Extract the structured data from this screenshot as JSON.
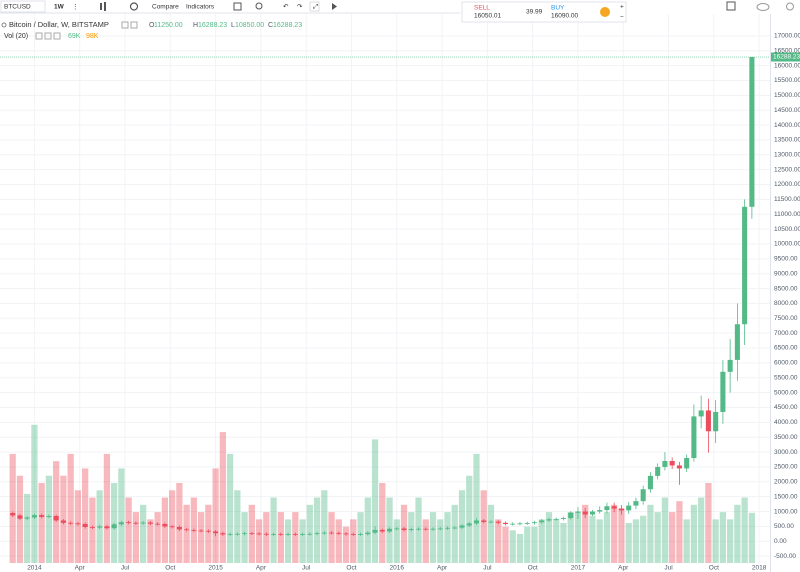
{
  "toolbar": {
    "symbol": "BTCUSD",
    "interval": "1W",
    "compare": "Compare",
    "indicators": "Indicators"
  },
  "trade": {
    "sell_label": "SELL",
    "sell_price": "16050.01",
    "spread": "39.99",
    "buy_label": "BUY",
    "buy_price": "16090.00"
  },
  "chart_data": {
    "type": "candlestick",
    "title": "Bitcoin / Dollar, W, BITSTAMP",
    "legend": {
      "open_label": "O",
      "open": "11250.00",
      "high_label": "H",
      "high": "16288.23",
      "low_label": "L",
      "low": "10850.00",
      "close_label": "C",
      "close": "16288.23"
    },
    "volume_title": "Vol (20)",
    "volume_label": "69K",
    "volume_ma_label": "98K",
    "up_color": "#53b987",
    "down_color": "#eb4d5c",
    "grid": true,
    "x": [
      2013.88,
      2013.92,
      2013.96,
      2014.0,
      2014.04,
      2014.08,
      2014.12,
      2014.16,
      2014.2,
      2014.24,
      2014.28,
      2014.32,
      2014.36,
      2014.4,
      2014.44,
      2014.48,
      2014.52,
      2014.56,
      2014.6,
      2014.64,
      2014.68,
      2014.72,
      2014.76,
      2014.8,
      2014.84,
      2014.88,
      2014.92,
      2014.96,
      2015.0,
      2015.04,
      2015.08,
      2015.12,
      2015.16,
      2015.2,
      2015.24,
      2015.28,
      2015.32,
      2015.36,
      2015.4,
      2015.44,
      2015.48,
      2015.52,
      2015.56,
      2015.6,
      2015.64,
      2015.68,
      2015.72,
      2015.76,
      2015.8,
      2015.84,
      2015.88,
      2015.92,
      2015.96,
      2016.0,
      2016.04,
      2016.08,
      2016.12,
      2016.16,
      2016.2,
      2016.24,
      2016.28,
      2016.32,
      2016.36,
      2016.4,
      2016.44,
      2016.48,
      2016.52,
      2016.56,
      2016.6,
      2016.64,
      2016.68,
      2016.72,
      2016.76,
      2016.8,
      2016.84,
      2016.88,
      2016.92,
      2016.96,
      2017.0,
      2017.04,
      2017.08,
      2017.12,
      2017.16,
      2017.2,
      2017.24,
      2017.28,
      2017.32,
      2017.36,
      2017.4,
      2017.44,
      2017.48,
      2017.52,
      2017.56,
      2017.6,
      2017.64,
      2017.68,
      2017.72,
      2017.76,
      2017.8,
      2017.84,
      2017.88,
      2017.92,
      2017.96
    ],
    "open": [
      950,
      870,
      760,
      800,
      880,
      820,
      850,
      700,
      620,
      600,
      580,
      480,
      460,
      500,
      440,
      570,
      640,
      620,
      600,
      630,
      590,
      580,
      500,
      480,
      400,
      380,
      360,
      350,
      330,
      270,
      230,
      240,
      250,
      270,
      260,
      250,
      230,
      240,
      230,
      240,
      230,
      240,
      250,
      270,
      290,
      280,
      260,
      240,
      230,
      240,
      290,
      380,
      330,
      420,
      430,
      380,
      410,
      420,
      410,
      420,
      430,
      450,
      460,
      530,
      600,
      700,
      650,
      660,
      620,
      580,
      590,
      600,
      610,
      640,
      700,
      740,
      750,
      780,
      960,
      1000,
      900,
      1000,
      1050,
      1180,
      1100,
      1040,
      1200,
      1350,
      1750,
      2200,
      2500,
      2700,
      2550,
      2450,
      2800,
      4200,
      4400,
      3700,
      4350,
      5700,
      6100,
      7300,
      11250
    ],
    "high": [
      1000,
      920,
      850,
      930,
      930,
      900,
      900,
      750,
      670,
      650,
      630,
      530,
      550,
      550,
      620,
      690,
      690,
      670,
      680,
      680,
      640,
      630,
      550,
      530,
      450,
      430,
      410,
      400,
      380,
      320,
      290,
      300,
      320,
      320,
      310,
      300,
      290,
      290,
      290,
      290,
      290,
      300,
      320,
      340,
      340,
      330,
      310,
      290,
      290,
      340,
      500,
      430,
      470,
      480,
      480,
      460,
      470,
      470,
      470,
      480,
      500,
      510,
      580,
      650,
      780,
      750,
      710,
      710,
      670,
      640,
      650,
      660,
      690,
      750,
      790,
      800,
      830,
      1010,
      1150,
      1120,
      1050,
      1170,
      1300,
      1300,
      1220,
      1320,
      1470,
      1870,
      2320,
      2620,
      3000,
      2820,
      2670,
      2920,
      4600,
      4900,
      4800,
      4750,
      6100,
      6800,
      8000,
      11500,
      16288.23
    ],
    "low": [
      820,
      710,
      710,
      750,
      770,
      770,
      650,
      570,
      550,
      530,
      430,
      410,
      410,
      390,
      390,
      520,
      570,
      550,
      550,
      540,
      530,
      450,
      430,
      350,
      330,
      310,
      300,
      280,
      170,
      180,
      180,
      190,
      200,
      210,
      200,
      180,
      180,
      180,
      180,
      180,
      180,
      190,
      200,
      220,
      230,
      210,
      190,
      180,
      180,
      190,
      240,
      280,
      280,
      370,
      330,
      330,
      360,
      360,
      360,
      370,
      380,
      400,
      410,
      480,
      550,
      600,
      600,
      570,
      530,
      530,
      540,
      550,
      560,
      590,
      650,
      690,
      700,
      730,
      750,
      780,
      850,
      930,
      930,
      980,
      900,
      920,
      1080,
      1230,
      1630,
      2080,
      2380,
      2430,
      1900,
      2330,
      2680,
      3800,
      2980,
      3300,
      3950,
      5000,
      5400,
      6600,
      10850
    ],
    "close": [
      870,
      760,
      800,
      880,
      820,
      850,
      700,
      620,
      600,
      580,
      480,
      460,
      500,
      440,
      570,
      640,
      620,
      600,
      630,
      590,
      580,
      500,
      480,
      400,
      380,
      360,
      350,
      330,
      270,
      230,
      240,
      250,
      270,
      260,
      250,
      230,
      240,
      230,
      240,
      230,
      240,
      250,
      270,
      290,
      280,
      260,
      240,
      230,
      240,
      290,
      380,
      330,
      420,
      430,
      380,
      410,
      420,
      410,
      420,
      430,
      450,
      460,
      530,
      600,
      700,
      650,
      660,
      620,
      580,
      590,
      600,
      610,
      640,
      700,
      740,
      750,
      780,
      960,
      1000,
      900,
      1000,
      1050,
      1180,
      1100,
      1040,
      1200,
      1350,
      1750,
      2200,
      2500,
      2700,
      2550,
      2450,
      2800,
      4200,
      4400,
      3700,
      4350,
      5700,
      6100,
      7300,
      11250,
      16288.23
    ],
    "volume": [
      150,
      120,
      95,
      190,
      110,
      120,
      140,
      120,
      150,
      100,
      130,
      90,
      100,
      150,
      110,
      130,
      90,
      70,
      80,
      60,
      70,
      90,
      100,
      110,
      80,
      90,
      70,
      80,
      130,
      180,
      150,
      100,
      70,
      80,
      60,
      70,
      90,
      70,
      60,
      70,
      60,
      80,
      90,
      100,
      70,
      60,
      50,
      60,
      70,
      90,
      170,
      110,
      90,
      60,
      80,
      70,
      90,
      60,
      70,
      60,
      70,
      80,
      100,
      120,
      150,
      100,
      80,
      60,
      50,
      45,
      40,
      50,
      50,
      60,
      70,
      60,
      55,
      70,
      70,
      80,
      65,
      60,
      70,
      80,
      75,
      55,
      60,
      65,
      80,
      70,
      90,
      70,
      85,
      60,
      80,
      90,
      110,
      60,
      70,
      60,
      80,
      90,
      69
    ],
    "volume_lim": [
      0,
      220
    ],
    "xlim": [
      2013.81,
      2018.06
    ],
    "xticks": [
      2014,
      {
        "value": 2014.25,
        "label": "Apr"
      },
      {
        "value": 2014.5,
        "label": "Jul"
      },
      {
        "value": 2014.75,
        "label": "Oct"
      },
      2015,
      {
        "value": 2015.25,
        "label": "Apr"
      },
      {
        "value": 2015.5,
        "label": "Jul"
      },
      {
        "value": 2015.75,
        "label": "Oct"
      },
      2016,
      {
        "value": 2016.25,
        "label": "Apr"
      },
      {
        "value": 2016.5,
        "label": "Jul"
      },
      {
        "value": 2016.75,
        "label": "Oct"
      },
      2017,
      {
        "value": 2017.25,
        "label": "Apr"
      },
      {
        "value": 2017.5,
        "label": "Jul"
      },
      {
        "value": 2017.75,
        "label": "Oct"
      },
      2018
    ],
    "ylim": [
      -1000,
      17500
    ],
    "yticks": [
      {
        "value": -500,
        "label": "-500.00"
      },
      {
        "value": 0,
        "label": "0.00"
      },
      {
        "value": 500,
        "label": "500.00"
      },
      {
        "value": 1000,
        "label": "1000.00"
      },
      {
        "value": 1500,
        "label": "1500.00"
      },
      {
        "value": 2000,
        "label": "2000.00"
      },
      {
        "value": 2500,
        "label": "2500.00"
      },
      {
        "value": 3000,
        "label": "3000.00"
      },
      {
        "value": 3500,
        "label": "3500.00"
      },
      {
        "value": 4000,
        "label": "4000.00"
      },
      {
        "value": 4500,
        "label": "4500.00"
      },
      {
        "value": 5000,
        "label": "5000.00"
      },
      {
        "value": 5500,
        "label": "5500.00"
      },
      {
        "value": 6000,
        "label": "6000.00"
      },
      {
        "value": 6500,
        "label": "6500.00"
      },
      {
        "value": 7000,
        "label": "7000.00"
      },
      {
        "value": 7500,
        "label": "7500.00"
      },
      {
        "value": 8000,
        "label": "8000.00"
      },
      {
        "value": 8500,
        "label": "8500.00"
      },
      {
        "value": 9000,
        "label": "9000.00"
      },
      {
        "value": 9500,
        "label": "9500.00"
      },
      {
        "value": 10000,
        "label": "10000.00"
      },
      {
        "value": 10500,
        "label": "10500.00"
      },
      {
        "value": 11000,
        "label": "11000.00"
      },
      {
        "value": 11500,
        "label": "11500.00"
      },
      {
        "value": 12000,
        "label": "12000.00"
      },
      {
        "value": 12500,
        "label": "12500.00"
      },
      {
        "value": 13000,
        "label": "13000.00"
      },
      {
        "value": 13500,
        "label": "13500.00"
      },
      {
        "value": 14000,
        "label": "14000.00"
      },
      {
        "value": 14500,
        "label": "14500.00"
      },
      {
        "value": 15000,
        "label": "15000.00"
      },
      {
        "value": 15500,
        "label": "15500.00"
      },
      {
        "value": 16000,
        "label": "16000.00"
      },
      {
        "value": 16500,
        "label": "16500.00"
      },
      {
        "value": 17000,
        "label": "17000.00"
      }
    ]
  }
}
